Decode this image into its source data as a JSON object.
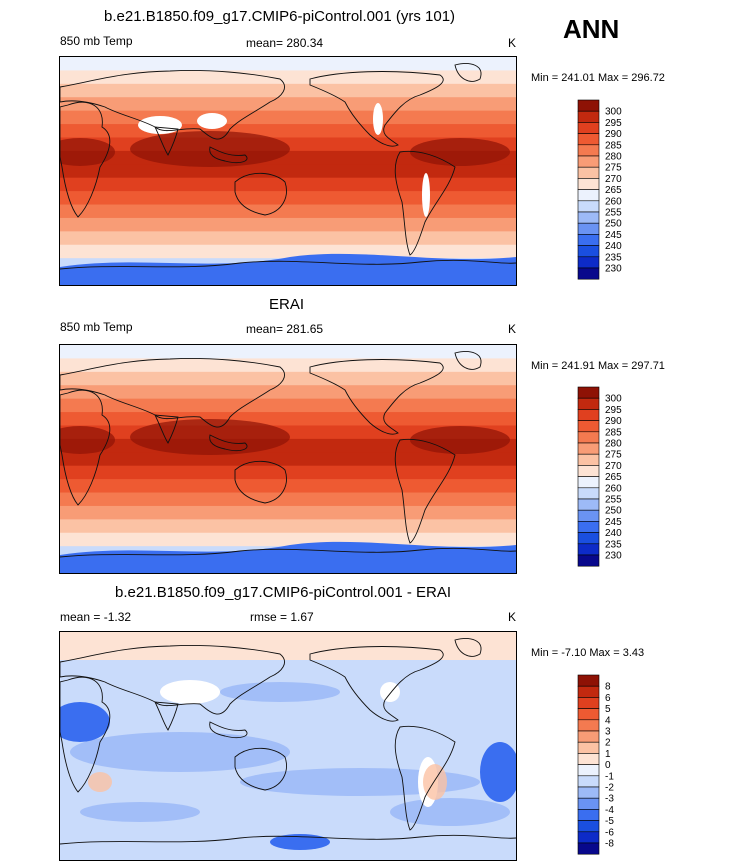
{
  "season": "ANN",
  "palette": {
    "temp": [
      "#08088c",
      "#0d2bc8",
      "#1a4fe0",
      "#3a6ef0",
      "#6a93f3",
      "#9dbaf7",
      "#c9dbfb",
      "#ecf2fd",
      "#fde3d4",
      "#fbc2a4",
      "#f89c76",
      "#f47a50",
      "#ee5a32",
      "#e0401f",
      "#c2290f",
      "#8e1205"
    ],
    "diff": [
      "#08088c",
      "#0d2bc8",
      "#1a4fe0",
      "#3a6ef0",
      "#6a93f3",
      "#9dbaf7",
      "#c9dbfb",
      "#ecf2fd",
      "#fde3d4",
      "#fbc2a4",
      "#f89c76",
      "#f47a50",
      "#ee5a32",
      "#e0401f",
      "#c2290f",
      "#8e1205"
    ]
  },
  "panels": [
    {
      "title": "b.e21.B1850.f09_g17.CMIP6-piControl.001 (yrs 101)",
      "left_label": "850 mb Temp",
      "center_label": "mean= 280.34",
      "right_label": "K",
      "minmax": "Min = 241.01 Max = 296.72",
      "colorbar_labels": [
        "300",
        "295",
        "290",
        "285",
        "280",
        "275",
        "270",
        "265",
        "260",
        "255",
        "250",
        "245",
        "240",
        "235",
        "230"
      ]
    },
    {
      "title": "ERAI",
      "left_label": "850 mb Temp",
      "center_label": "mean= 281.65",
      "right_label": "K",
      "minmax": "Min = 241.91 Max = 297.71",
      "colorbar_labels": [
        "300",
        "295",
        "290",
        "285",
        "280",
        "275",
        "270",
        "265",
        "260",
        "255",
        "250",
        "245",
        "240",
        "235",
        "230"
      ]
    },
    {
      "title": "b.e21.B1850.f09_g17.CMIP6-piControl.001 - ERAI",
      "left_label": "mean =  -1.32",
      "center_label": "rmse =   1.67",
      "right_label": "K",
      "minmax": "Min =  -7.10 Max =   3.43",
      "colorbar_labels": [
        "8",
        "6",
        "5",
        "4",
        "3",
        "2",
        "1",
        "0",
        "-1",
        "-2",
        "-3",
        "-4",
        "-5",
        "-6",
        "-8"
      ]
    }
  ],
  "chart_data": [
    {
      "type": "heatmap",
      "title": "b.e21.B1850.f09_g17.CMIP6-piControl.001 (yrs 101)",
      "variable": "850 mb Temp",
      "units": "K",
      "mean": 280.34,
      "min": 241.01,
      "max": 296.72,
      "contour_levels": [
        230,
        235,
        240,
        245,
        250,
        255,
        260,
        265,
        270,
        275,
        280,
        285,
        290,
        295,
        300
      ]
    },
    {
      "type": "heatmap",
      "title": "ERAI",
      "variable": "850 mb Temp",
      "units": "K",
      "mean": 281.65,
      "min": 241.91,
      "max": 297.71,
      "contour_levels": [
        230,
        235,
        240,
        245,
        250,
        255,
        260,
        265,
        270,
        275,
        280,
        285,
        290,
        295,
        300
      ]
    },
    {
      "type": "heatmap",
      "title": "b.e21.B1850.f09_g17.CMIP6-piControl.001 - ERAI",
      "units": "K",
      "mean": -1.32,
      "rmse": 1.67,
      "min": -7.1,
      "max": 3.43,
      "contour_levels": [
        -8,
        -6,
        -5,
        -4,
        -3,
        -2,
        -1,
        0,
        1,
        2,
        3,
        4,
        5,
        6,
        8
      ]
    }
  ]
}
